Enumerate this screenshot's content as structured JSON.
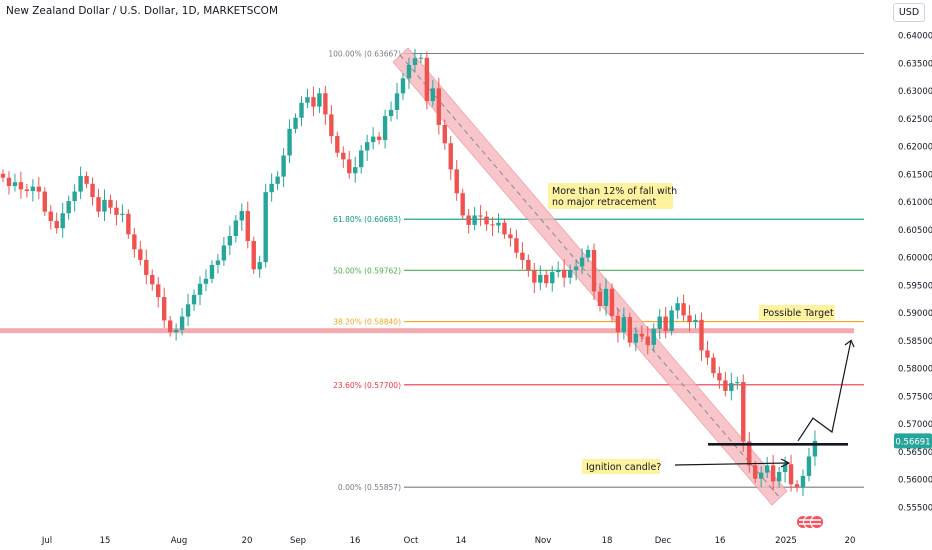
{
  "header": {
    "title": "New Zealand Dollar / U.S. Dollar, 1D, MARKETSCOM",
    "currency_button": "USD"
  },
  "colors": {
    "up": "#26a69a",
    "down": "#ef5350",
    "channel_fill": "#f7b7bd",
    "channel_stroke": "#ec8a93",
    "support_band": "#f29ba3",
    "fib_100": "#787b86",
    "fib_618": "#089981",
    "fib_50": "#4caf50",
    "fib_382": "#f5a623",
    "fib_236": "#f23645",
    "fib_0": "#787b86",
    "note_bg": "#fff3a0",
    "price_label_bg": "#26a69a"
  },
  "chart_data": {
    "type": "candlestick",
    "symbol": "NZDUSD",
    "timeframe": "1D",
    "ylim": [
      0.5532,
      0.6415
    ],
    "y_ticks": [
      "0.64000",
      "0.63500",
      "0.63000",
      "0.62500",
      "0.62000",
      "0.61500",
      "0.61000",
      "0.60500",
      "0.60000",
      "0.59500",
      "0.59000",
      "0.58500",
      "0.58000",
      "0.57500",
      "0.57000",
      "0.56500",
      "0.56000",
      "0.55500"
    ],
    "x_ticks": [
      "Jul",
      "15",
      "Aug",
      "20",
      "Sep",
      "16",
      "Oct",
      "14",
      "Nov",
      "18",
      "Dec",
      "16",
      "2025",
      "20"
    ],
    "last_price": "0.56691",
    "closes": [
      0.6143,
      0.6128,
      0.6135,
      0.6122,
      0.6119,
      0.6127,
      0.6118,
      0.6082,
      0.6065,
      0.6052,
      0.6079,
      0.6101,
      0.6118,
      0.6146,
      0.6132,
      0.6108,
      0.6082,
      0.6103,
      0.6089,
      0.6076,
      0.6078,
      0.6041,
      0.6014,
      0.5995,
      0.5968,
      0.5951,
      0.5928,
      0.5886,
      0.5865,
      0.5869,
      0.5893,
      0.5915,
      0.5932,
      0.5952,
      0.5961,
      0.5986,
      0.5994,
      0.6021,
      0.6038,
      0.6066,
      0.6083,
      0.6029,
      0.5978,
      0.5991,
      0.6117,
      0.6132,
      0.6145,
      0.6183,
      0.6231,
      0.6251,
      0.6278,
      0.6288,
      0.6271,
      0.6295,
      0.6257,
      0.6218,
      0.6188,
      0.6176,
      0.6151,
      0.6162,
      0.6192,
      0.6207,
      0.6217,
      0.6211,
      0.6254,
      0.6265,
      0.6295,
      0.6322,
      0.6346,
      0.6358,
      0.6359,
      0.6281,
      0.6304,
      0.6238,
      0.6205,
      0.6158,
      0.6115,
      0.6075,
      0.6058,
      0.6075,
      0.6073,
      0.6059,
      0.6057,
      0.6062,
      0.6041,
      0.6034,
      0.6008,
      0.5995,
      0.5976,
      0.5954,
      0.5968,
      0.5953,
      0.5973,
      0.5977,
      0.5963,
      0.5977,
      0.5983,
      0.5999,
      0.6013,
      0.5938,
      0.5912,
      0.5943,
      0.5894,
      0.5865,
      0.5892,
      0.5846,
      0.5862,
      0.5857,
      0.5842,
      0.5871,
      0.5893,
      0.5867,
      0.5904,
      0.5917,
      0.5895,
      0.5883,
      0.5887,
      0.5832,
      0.5819,
      0.5791,
      0.5778,
      0.5759,
      0.5773,
      0.5775,
      0.5668,
      0.5625,
      0.5601,
      0.5612,
      0.5625,
      0.5596,
      0.5613,
      0.5627,
      0.5591,
      0.5585,
      0.5606,
      0.5641,
      0.5669
    ],
    "last_close_value": 0.56691,
    "fibonacci": [
      {
        "level": "100.00%",
        "price": "(0.63667)",
        "value": 0.63667
      },
      {
        "level": "61.80%",
        "price": "(0.60683)",
        "value": 0.60683
      },
      {
        "level": "50.00%",
        "price": "(0.59762)",
        "value": 0.59762
      },
      {
        "level": "38.20%",
        "price": "(0.58840)",
        "value": 0.5884
      },
      {
        "level": "23.60%",
        "price": "(0.57700)",
        "value": 0.577
      },
      {
        "level": "0.00%",
        "price": "(0.55857)",
        "value": 0.55857
      }
    ],
    "annotations": {
      "note_fall_line1": "More than 12% of fall with",
      "note_fall_line2": "no major retracement",
      "note_target": "Possible Target",
      "note_ignition": "Ignition candle?"
    },
    "support_zone": {
      "low": 0.5863,
      "high": 0.5872
    },
    "neckline": 0.5661,
    "projected_path": [
      0.5669,
      0.571,
      0.5685,
      0.585
    ]
  }
}
